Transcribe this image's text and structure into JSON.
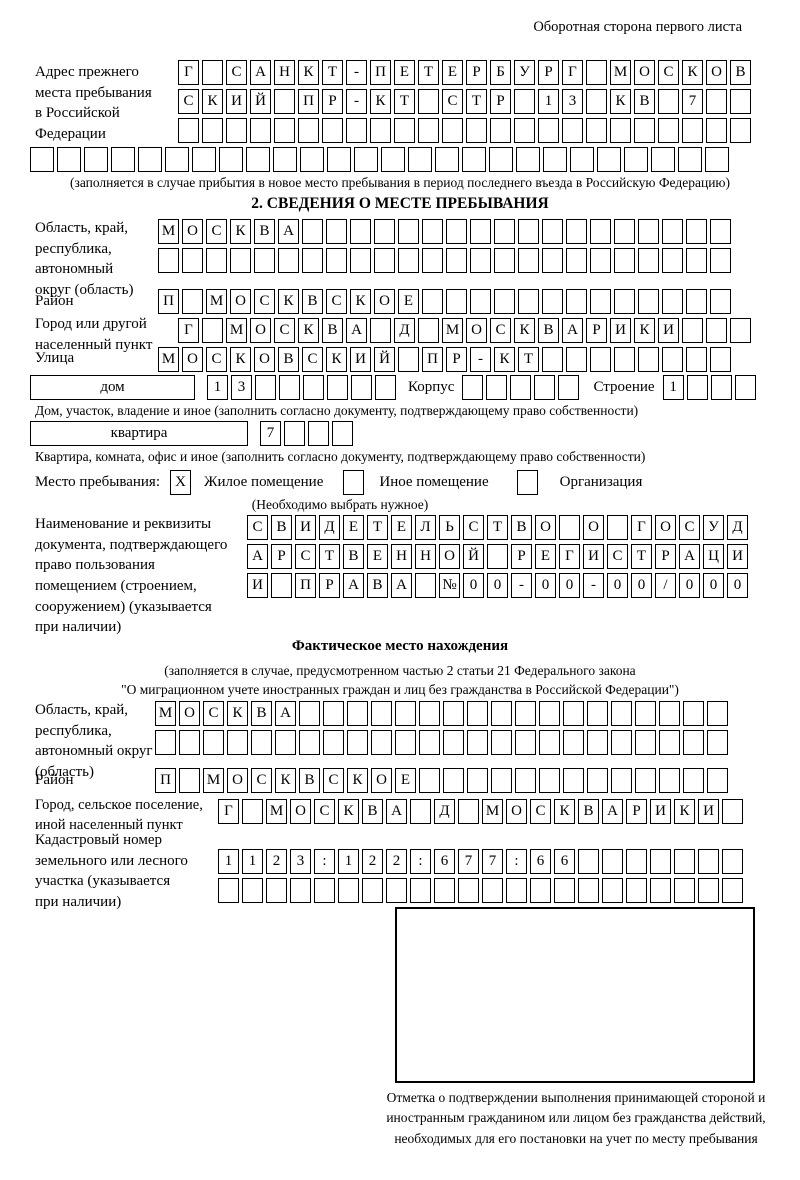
{
  "page": {
    "top_right_note": "Оборотная сторона первого листа"
  },
  "prev_address": {
    "label": "Адрес прежнего\nместа пребывания\nв Российской\nФедерации",
    "row1": "Г САНКТ-ПЕТЕРБУРГ МОСКОВ",
    "row2": "СКИЙ ПР-КТ СТР 13 КВ 7  ",
    "row3": "                        ",
    "row4": "                          ",
    "note": "(заполняется в случае прибытия в новое место пребывания в период последнего въезда в Российскую Федерацию)"
  },
  "section2": {
    "title": "2. СВЕДЕНИЯ О МЕСТЕ ПРЕБЫВАНИЯ",
    "region": {
      "label": "Область, край,\nреспублика,\nавтономный\nокруг (область)",
      "row1": "МОСКВА                  ",
      "row2": "                        "
    },
    "district": {
      "label": "Район",
      "cells": "П МОСКВСКОЕ             "
    },
    "city": {
      "label": "Город или другой\nнаселенный пункт",
      "cells": "Г МОСКВА Д МОСКВАРИКИ   "
    },
    "street": {
      "label": "Улица",
      "cells": "МОСКОВСКИЙ ПР-КТ        "
    },
    "house": {
      "box_label": "дом",
      "cells": "13      ",
      "korpus_label": "Корпус",
      "korpus_cells": "     ",
      "stroenie_label": "Строение",
      "stroenie_cells": "1   "
    },
    "house_note": "Дом, участок, владение и иное (заполнить согласно документу, подтверждающему право собственности)",
    "apartment": {
      "box_label": "квартира",
      "cells": "7   "
    },
    "apartment_note": "Квартира, комната, офис и иное (заполнить согласно документу, подтверждающему право собственности)",
    "stay": {
      "label": "Место пребывания:",
      "options": [
        {
          "mark": "X",
          "label": "Жилое помещение"
        },
        {
          "mark": "",
          "label": "Иное помещение"
        },
        {
          "mark": "",
          "label": "Организация"
        }
      ],
      "note": "(Необходимо выбрать нужное)"
    },
    "document": {
      "label": "Наименование и реквизиты\nдокумента, подтверждающего\nправо пользования\nпомещением (строением,\nсооружением) (указывается\nпри наличии)",
      "row1": "СВИДЕТЕЛЬСТВО О ГОСУД",
      "row2": "АРСТВЕННОЙ РЕГИСТРАЦИ",
      "row3": "И ПРАВА №00-00-00/000"
    }
  },
  "actual_location": {
    "title": "Фактическое место нахождения",
    "note_line1": "(заполняется в случае, предусмотренном частью 2 статьи 21 Федерального закона",
    "note_line2": "\"О миграционном учете иностранных граждан и лиц без гражданства в Российской Федерации\")",
    "region": {
      "label": "Область, край,\nреспублика,\nавтономный округ\n(область)",
      "row1": "МОСКВА                  ",
      "row2": "                        "
    },
    "district": {
      "label": "Район",
      "cells": "П МОСКВСКОЕ             "
    },
    "city": {
      "label": "Город, сельское поселение,\nиной населенный пункт",
      "cells": "Г МОСКВА Д МОСКВАРИКИ "
    },
    "cadastral": {
      "label": "Кадастровый номер\nземельного или лесного\nучастка (указывается\nпри наличии)",
      "row1": "1123:122:677:66       ",
      "row2": "                      "
    },
    "stamp_note": "Отметка о подтверждении выполнения принимающей стороной и иностранным гражданином или лицом без гражданства действий, необходимых для его постановки на учет по месту пребывания"
  }
}
